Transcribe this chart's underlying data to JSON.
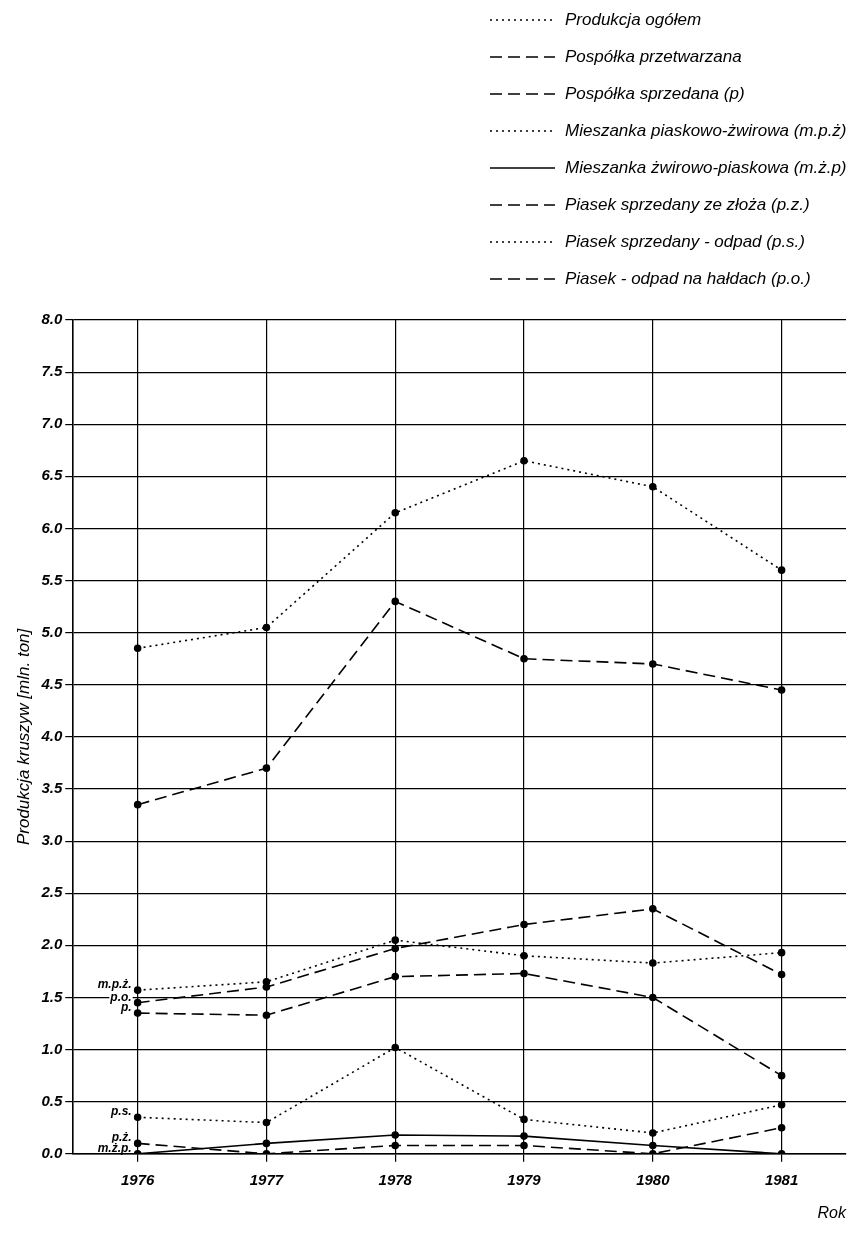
{
  "chart_data": {
    "type": "line",
    "xlabel": "Rok",
    "ylabel": "Produkcja kruszyw [mln. ton]",
    "categories": [
      "1976",
      "1977",
      "1978",
      "1979",
      "1980",
      "1981"
    ],
    "series": [
      {
        "name": "Produkcja ogółem",
        "color": "#000000",
        "line_style": "dotted",
        "values": [
          4.85,
          5.05,
          6.15,
          6.65,
          6.4,
          5.6
        ]
      },
      {
        "name": "Pospółka przetwarzana",
        "color": "#000000",
        "line_style": "dashed",
        "values": [
          3.35,
          3.7,
          5.3,
          4.75,
          4.7,
          4.45
        ]
      },
      {
        "name": "Pospółka sprzedana (p)",
        "color": "#000000",
        "line_style": "dashed",
        "values": [
          1.35,
          1.33,
          1.7,
          1.73,
          1.5,
          0.75
        ]
      },
      {
        "name": "Mieszanka piaskowo-żwirowa (m.p.ż)",
        "color": "#000000",
        "line_style": "dotted",
        "values": [
          1.57,
          1.65,
          2.05,
          1.9,
          1.83,
          1.93
        ]
      },
      {
        "name": "Mieszanka żwirowo-piaskowa (m.ż.p)",
        "color": "#000000",
        "line_style": "solid",
        "values": [
          0.0,
          0.1,
          0.18,
          0.17,
          0.08,
          0.0
        ]
      },
      {
        "name": "Piasek sprzedany ze złoża (p.z.)",
        "color": "#000000",
        "line_style": "dashed",
        "values": [
          0.1,
          0.0,
          0.08,
          0.08,
          0.0,
          0.25
        ]
      },
      {
        "name": "Piasek sprzedany - odpad (p.s.)",
        "color": "#000000",
        "line_style": "dotted",
        "values": [
          0.35,
          0.3,
          1.02,
          0.33,
          0.2,
          0.47
        ]
      },
      {
        "name": "Piasek - odpad na hałdach (p.o.)",
        "color": "#000000",
        "line_style": "dashed",
        "values": [
          1.45,
          1.6,
          1.97,
          2.2,
          2.35,
          1.72
        ]
      }
    ],
    "ylim": [
      0,
      8
    ],
    "yticks": [
      {
        "value": 0,
        "label": "0.0"
      },
      0.5,
      {
        "value": 1,
        "label": "1.0"
      },
      1.5,
      {
        "value": 2,
        "label": "2.0"
      },
      2.5,
      {
        "value": 3,
        "label": "3.0"
      },
      3.5,
      {
        "value": 4,
        "label": "4.0"
      },
      4.5,
      {
        "value": 5,
        "label": "5.0"
      },
      5.5,
      {
        "value": 6,
        "label": "6.0"
      },
      6.5,
      {
        "value": 7,
        "label": "7.0"
      },
      7.5,
      {
        "value": 8,
        "label": "8.0"
      }
    ],
    "grid": true,
    "legend": "top right",
    "marker": "circle",
    "annotations": [
      {
        "text": "m.p.ż.",
        "x": "1976",
        "y": 1.57
      },
      {
        "text": "p.o.",
        "x": "1976",
        "y": 1.45
      },
      {
        "text": "p.",
        "x": "1976",
        "y": 1.35
      },
      {
        "text": "p.s.",
        "x": "1976",
        "y": 0.35
      },
      {
        "text": "p.ż.",
        "x": "1976",
        "y": 0.1
      },
      {
        "text": "m.ż.p.",
        "x": "1976",
        "y": 0.0
      }
    ]
  }
}
